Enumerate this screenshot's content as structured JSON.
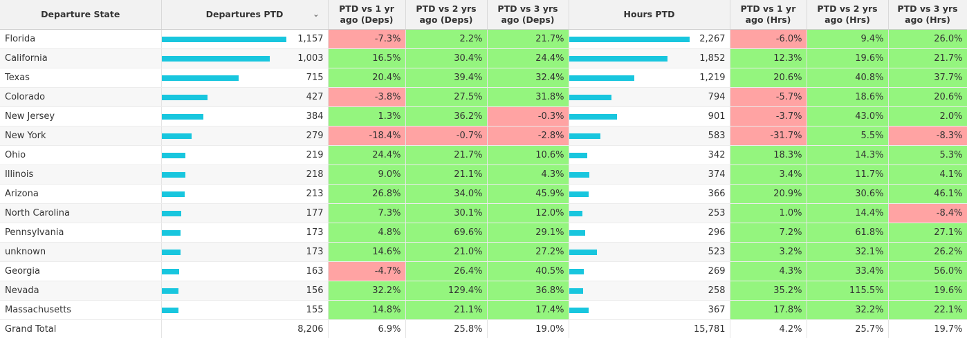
{
  "headers": {
    "state": "Departure State",
    "departures": "Departures PTD",
    "dep_vs_1yr": "PTD vs 1 yr ago (Deps)",
    "dep_vs_2yr": "PTD vs 2 yrs ago (Deps)",
    "dep_vs_3yr": "PTD vs 3 yrs ago (Deps)",
    "hours": "Hours PTD",
    "hrs_vs_1yr": "PTD vs 1 yr ago (Hrs)",
    "hrs_vs_2yr": "PTD vs 2 yrs ago (Hrs)",
    "hrs_vs_3yr": "PTD vs 3 yrs ago (Hrs)"
  },
  "colors": {
    "bar": "#18c6de",
    "positive": "#94f57e",
    "negative": "#ffa3a3"
  },
  "rows": [
    {
      "state": "Florida",
      "deps": "1,157",
      "d1": "-7.3%",
      "d2": "2.2%",
      "d3": "21.7%",
      "hours": "2,267",
      "h1": "-6.0%",
      "h2": "9.4%",
      "h3": "26.0%"
    },
    {
      "state": "California",
      "deps": "1,003",
      "d1": "16.5%",
      "d2": "30.4%",
      "d3": "24.4%",
      "hours": "1,852",
      "h1": "12.3%",
      "h2": "19.6%",
      "h3": "21.7%"
    },
    {
      "state": "Texas",
      "deps": "715",
      "d1": "20.4%",
      "d2": "39.4%",
      "d3": "32.4%",
      "hours": "1,219",
      "h1": "20.6%",
      "h2": "40.8%",
      "h3": "37.7%"
    },
    {
      "state": "Colorado",
      "deps": "427",
      "d1": "-3.8%",
      "d2": "27.5%",
      "d3": "31.8%",
      "hours": "794",
      "h1": "-5.7%",
      "h2": "18.6%",
      "h3": "20.6%"
    },
    {
      "state": "New Jersey",
      "deps": "384",
      "d1": "1.3%",
      "d2": "36.2%",
      "d3": "-0.3%",
      "hours": "901",
      "h1": "-3.7%",
      "h2": "43.0%",
      "h3": "2.0%"
    },
    {
      "state": "New York",
      "deps": "279",
      "d1": "-18.4%",
      "d2": "-0.7%",
      "d3": "-2.8%",
      "hours": "583",
      "h1": "-31.7%",
      "h2": "5.5%",
      "h3": "-8.3%"
    },
    {
      "state": "Ohio",
      "deps": "219",
      "d1": "24.4%",
      "d2": "21.7%",
      "d3": "10.6%",
      "hours": "342",
      "h1": "18.3%",
      "h2": "14.3%",
      "h3": "5.3%"
    },
    {
      "state": "Illinois",
      "deps": "218",
      "d1": "9.0%",
      "d2": "21.1%",
      "d3": "4.3%",
      "hours": "374",
      "h1": "3.4%",
      "h2": "11.7%",
      "h3": "4.1%"
    },
    {
      "state": "Arizona",
      "deps": "213",
      "d1": "26.8%",
      "d2": "34.0%",
      "d3": "45.9%",
      "hours": "366",
      "h1": "20.9%",
      "h2": "30.6%",
      "h3": "46.1%"
    },
    {
      "state": "North Carolina",
      "deps": "177",
      "d1": "7.3%",
      "d2": "30.1%",
      "d3": "12.0%",
      "hours": "253",
      "h1": "1.0%",
      "h2": "14.4%",
      "h3": "-8.4%"
    },
    {
      "state": "Pennsylvania",
      "deps": "173",
      "d1": "4.8%",
      "d2": "69.6%",
      "d3": "29.1%",
      "hours": "296",
      "h1": "7.2%",
      "h2": "61.8%",
      "h3": "27.1%"
    },
    {
      "state": "unknown",
      "deps": "173",
      "d1": "14.6%",
      "d2": "21.0%",
      "d3": "27.2%",
      "hours": "523",
      "h1": "3.2%",
      "h2": "32.1%",
      "h3": "26.2%"
    },
    {
      "state": "Georgia",
      "deps": "163",
      "d1": "-4.7%",
      "d2": "26.4%",
      "d3": "40.5%",
      "hours": "269",
      "h1": "4.3%",
      "h2": "33.4%",
      "h3": "56.0%"
    },
    {
      "state": "Nevada",
      "deps": "156",
      "d1": "32.2%",
      "d2": "129.4%",
      "d3": "36.8%",
      "hours": "258",
      "h1": "35.2%",
      "h2": "115.5%",
      "h3": "19.6%"
    },
    {
      "state": "Massachusetts",
      "deps": "155",
      "d1": "14.8%",
      "d2": "21.1%",
      "d3": "17.4%",
      "hours": "367",
      "h1": "17.8%",
      "h2": "32.2%",
      "h3": "22.1%"
    }
  ],
  "total": {
    "state": "Grand Total",
    "deps": "8,206",
    "d1": "6.9%",
    "d2": "25.8%",
    "d3": "19.0%",
    "hours": "15,781",
    "h1": "4.2%",
    "h2": "25.7%",
    "h3": "19.7%"
  }
}
